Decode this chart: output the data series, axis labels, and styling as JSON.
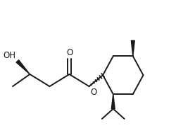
{
  "bg_color": "#ffffff",
  "line_color": "#1a1a1a",
  "line_width": 1.4,
  "font_size": 8.5,
  "figsize": [
    2.5,
    1.88
  ],
  "dpi": 100,
  "xlim": [
    0,
    10
  ],
  "ylim": [
    0.5,
    8.0
  ]
}
